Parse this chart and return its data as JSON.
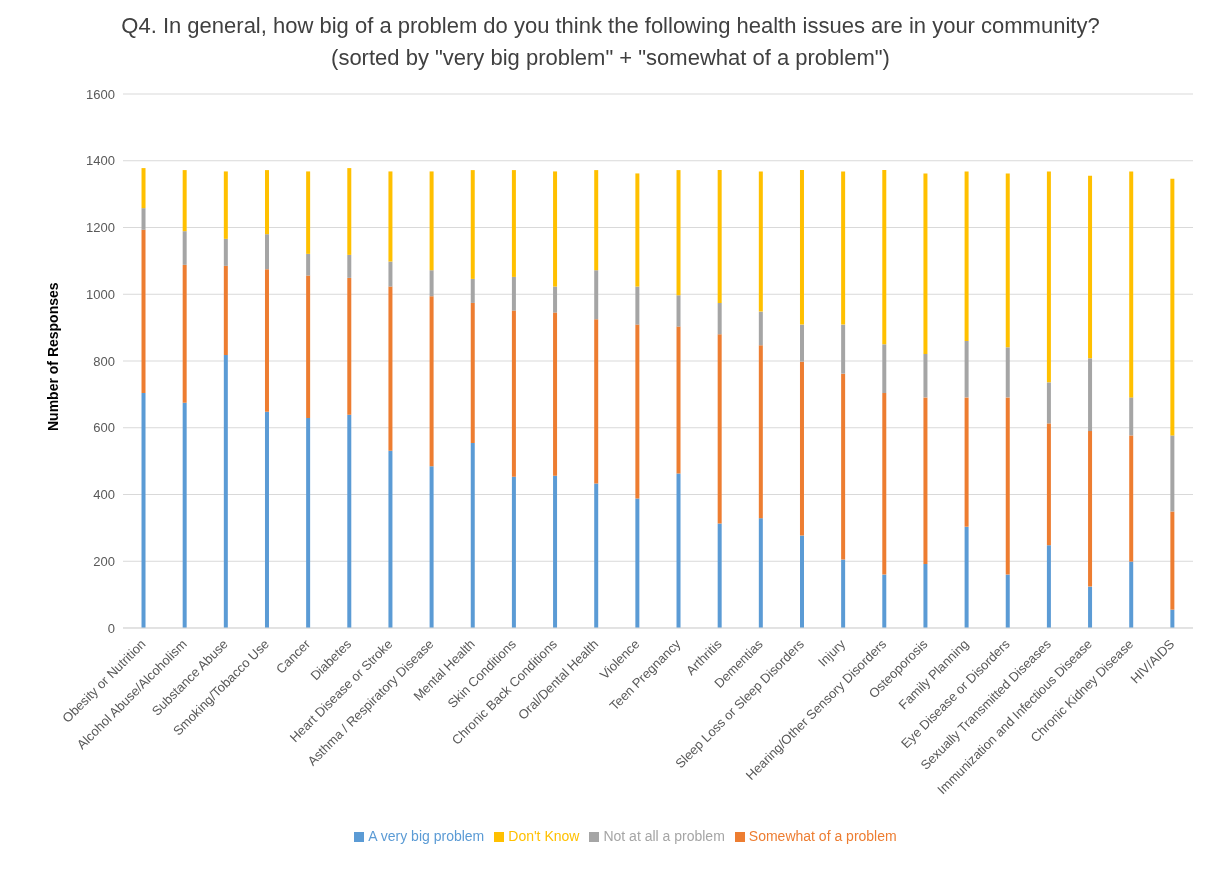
{
  "chart_data": {
    "type": "bar",
    "stacked": true,
    "title": "Q4. In general, how big of a problem do you think the following health issues are in your community?  (sorted by \"very big problem\" + \"somewhat of a problem\")",
    "ylabel": "Number of Responses",
    "categories": [
      "Obesity or Nutrition",
      "Alcohol Abuse/Alcoholism",
      "Substance Abuse",
      "Smoking/Tobacco Use",
      "Cancer",
      "Diabetes",
      "Heart Disease or Stroke",
      "Asthma / Respiratory Disease",
      "Mental Health",
      "Skin Conditions",
      "Chronic Back Conditions",
      "Oral/Dental Health",
      "Violence",
      "Teen Pregnancy",
      "Arthritis",
      "Dementias",
      "Sleep Loss or Sleep Disorders",
      "Injury",
      "Hearing/Other Sensory Disorders",
      "Osteoporosis",
      "Family Planning",
      "Eye Disease or Disorders",
      "Sexually Transmitted Diseases",
      "Immunization and Infectious Disease",
      "Chronic Kidney Disease",
      "HIV/AIDS"
    ],
    "series": [
      {
        "name": "A very big problem",
        "color": "#5b9bd5",
        "values": [
          704,
          675,
          818,
          648,
          629,
          639,
          531,
          485,
          554,
          453,
          456,
          433,
          388,
          463,
          313,
          329,
          277,
          205,
          160,
          192,
          303,
          160,
          248,
          124,
          199,
          55
        ]
      },
      {
        "name": "Somewhat of a problem",
        "color": "#ed7d31",
        "values": [
          489,
          413,
          267,
          427,
          427,
          410,
          492,
          509,
          420,
          498,
          489,
          492,
          521,
          440,
          567,
          518,
          521,
          557,
          544,
          499,
          388,
          531,
          365,
          466,
          378,
          294
        ]
      },
      {
        "name": "Not at all a problem",
        "color": "#a5a5a5",
        "values": [
          65,
          101,
          81,
          105,
          65,
          69,
          75,
          78,
          72,
          101,
          78,
          147,
          114,
          94,
          94,
          101,
          111,
          147,
          146,
          130,
          169,
          150,
          123,
          218,
          114,
          228
        ]
      },
      {
        "name": "Don't Know",
        "color": "#ffc000",
        "values": [
          120,
          183,
          202,
          192,
          247,
          260,
          270,
          296,
          326,
          320,
          345,
          300,
          339,
          375,
          398,
          420,
          463,
          459,
          522,
          541,
          508,
          521,
          632,
          547,
          677,
          769
        ]
      }
    ],
    "ylim": [
      0,
      1600
    ],
    "yticks": [
      0,
      200,
      400,
      600,
      800,
      1000,
      1200,
      1400,
      1600
    ],
    "grid": "y",
    "legend": "bottom"
  }
}
